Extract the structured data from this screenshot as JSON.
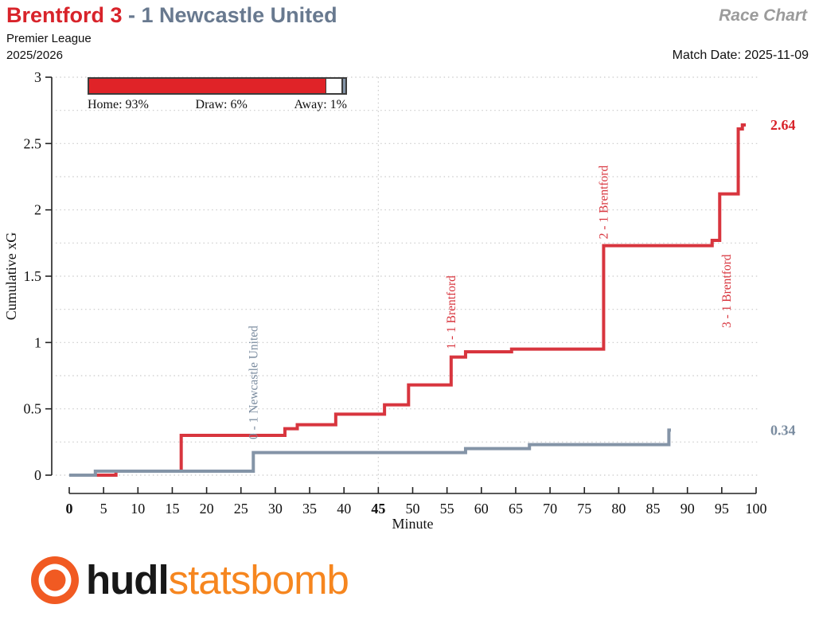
{
  "header": {
    "home_label": "Brentford 3",
    "separator": " - ",
    "away_label": "1 Newcastle United",
    "race_chart_label": "Race Chart",
    "competition": "Premier League",
    "season": "2025/2026",
    "match_date": "Match Date: 2025-11-09"
  },
  "probability_bar": {
    "home_pct": 93,
    "draw_pct": 6,
    "away_pct": 1,
    "home_label": "Home: 93%",
    "draw_label": "Draw: 6%",
    "away_label": "Away: 1%"
  },
  "chart_data": {
    "type": "line",
    "subtype": "step-race-chart",
    "xlabel": "Minute",
    "ylabel": "Cumulative xG",
    "xlim": [
      0,
      100
    ],
    "ylim": [
      0,
      3
    ],
    "x_ticks": [
      0,
      5,
      10,
      15,
      20,
      25,
      30,
      35,
      40,
      45,
      50,
      55,
      60,
      65,
      70,
      75,
      80,
      85,
      90,
      95,
      100
    ],
    "x_bold_ticks": [
      0,
      45
    ],
    "y_ticks": [
      0,
      0.5,
      1,
      1.5,
      2,
      2.5,
      3
    ],
    "grid": {
      "horizontal_step": 0.25,
      "vertical_guides": [
        45
      ],
      "style": "dotted"
    },
    "legend_position": "none",
    "series": [
      {
        "name": "Brentford",
        "color": "#D8353E",
        "final_value": 2.64,
        "end_minute": 98.5,
        "steps": [
          [
            0,
            0
          ],
          [
            6.8,
            0.03
          ],
          [
            16.3,
            0.3
          ],
          [
            31.4,
            0.35
          ],
          [
            33.2,
            0.38
          ],
          [
            38.8,
            0.46
          ],
          [
            45.9,
            0.53
          ],
          [
            49.4,
            0.68
          ],
          [
            55.6,
            0.89
          ],
          [
            57.7,
            0.93
          ],
          [
            64.4,
            0.95
          ],
          [
            77.8,
            1.73
          ],
          [
            93.6,
            1.77
          ],
          [
            94.7,
            2.12
          ],
          [
            97.4,
            2.61
          ],
          [
            98,
            2.64
          ]
        ]
      },
      {
        "name": "Newcastle United",
        "color": "#8494A7",
        "final_value": 0.34,
        "end_minute": 87.6,
        "steps": [
          [
            0,
            0
          ],
          [
            3.8,
            0.03
          ],
          [
            26.8,
            0.17
          ],
          [
            57.7,
            0.2
          ],
          [
            67,
            0.23
          ],
          [
            87.3,
            0.34
          ]
        ]
      }
    ],
    "annotations": [
      {
        "label": "0 - 1 Newcastle United",
        "minute": 26.8,
        "color": "#7C8DA0",
        "anchor_xg": 0.27
      },
      {
        "label": "1 - 1 Brentford",
        "minute": 55.6,
        "color": "#D8353E",
        "anchor_xg": 0.95
      },
      {
        "label": "2 - 1 Brentford",
        "minute": 77.8,
        "color": "#D8353E",
        "anchor_xg": 1.78
      },
      {
        "label": "3 - 1 Brentford",
        "minute": 95.7,
        "color": "#D8353E",
        "anchor_xg": 1.11
      }
    ],
    "end_labels": [
      {
        "text": "2.64",
        "value": 2.64,
        "color": "#D8232A"
      },
      {
        "text": "0.34",
        "value": 0.34,
        "color": "#7A8CA0"
      }
    ]
  },
  "footer": {
    "hudl": "hudl",
    "statsbomb": "statsbomb"
  },
  "colors": {
    "home_red": "#D8232A",
    "away_slate": "#8494A7",
    "grid_gray": "#CACACA",
    "axis_black": "#222222",
    "race_chart_gray": "#9B9B9B",
    "logo_orange": "#F15A22",
    "statsbomb_orange": "#F6861F"
  }
}
